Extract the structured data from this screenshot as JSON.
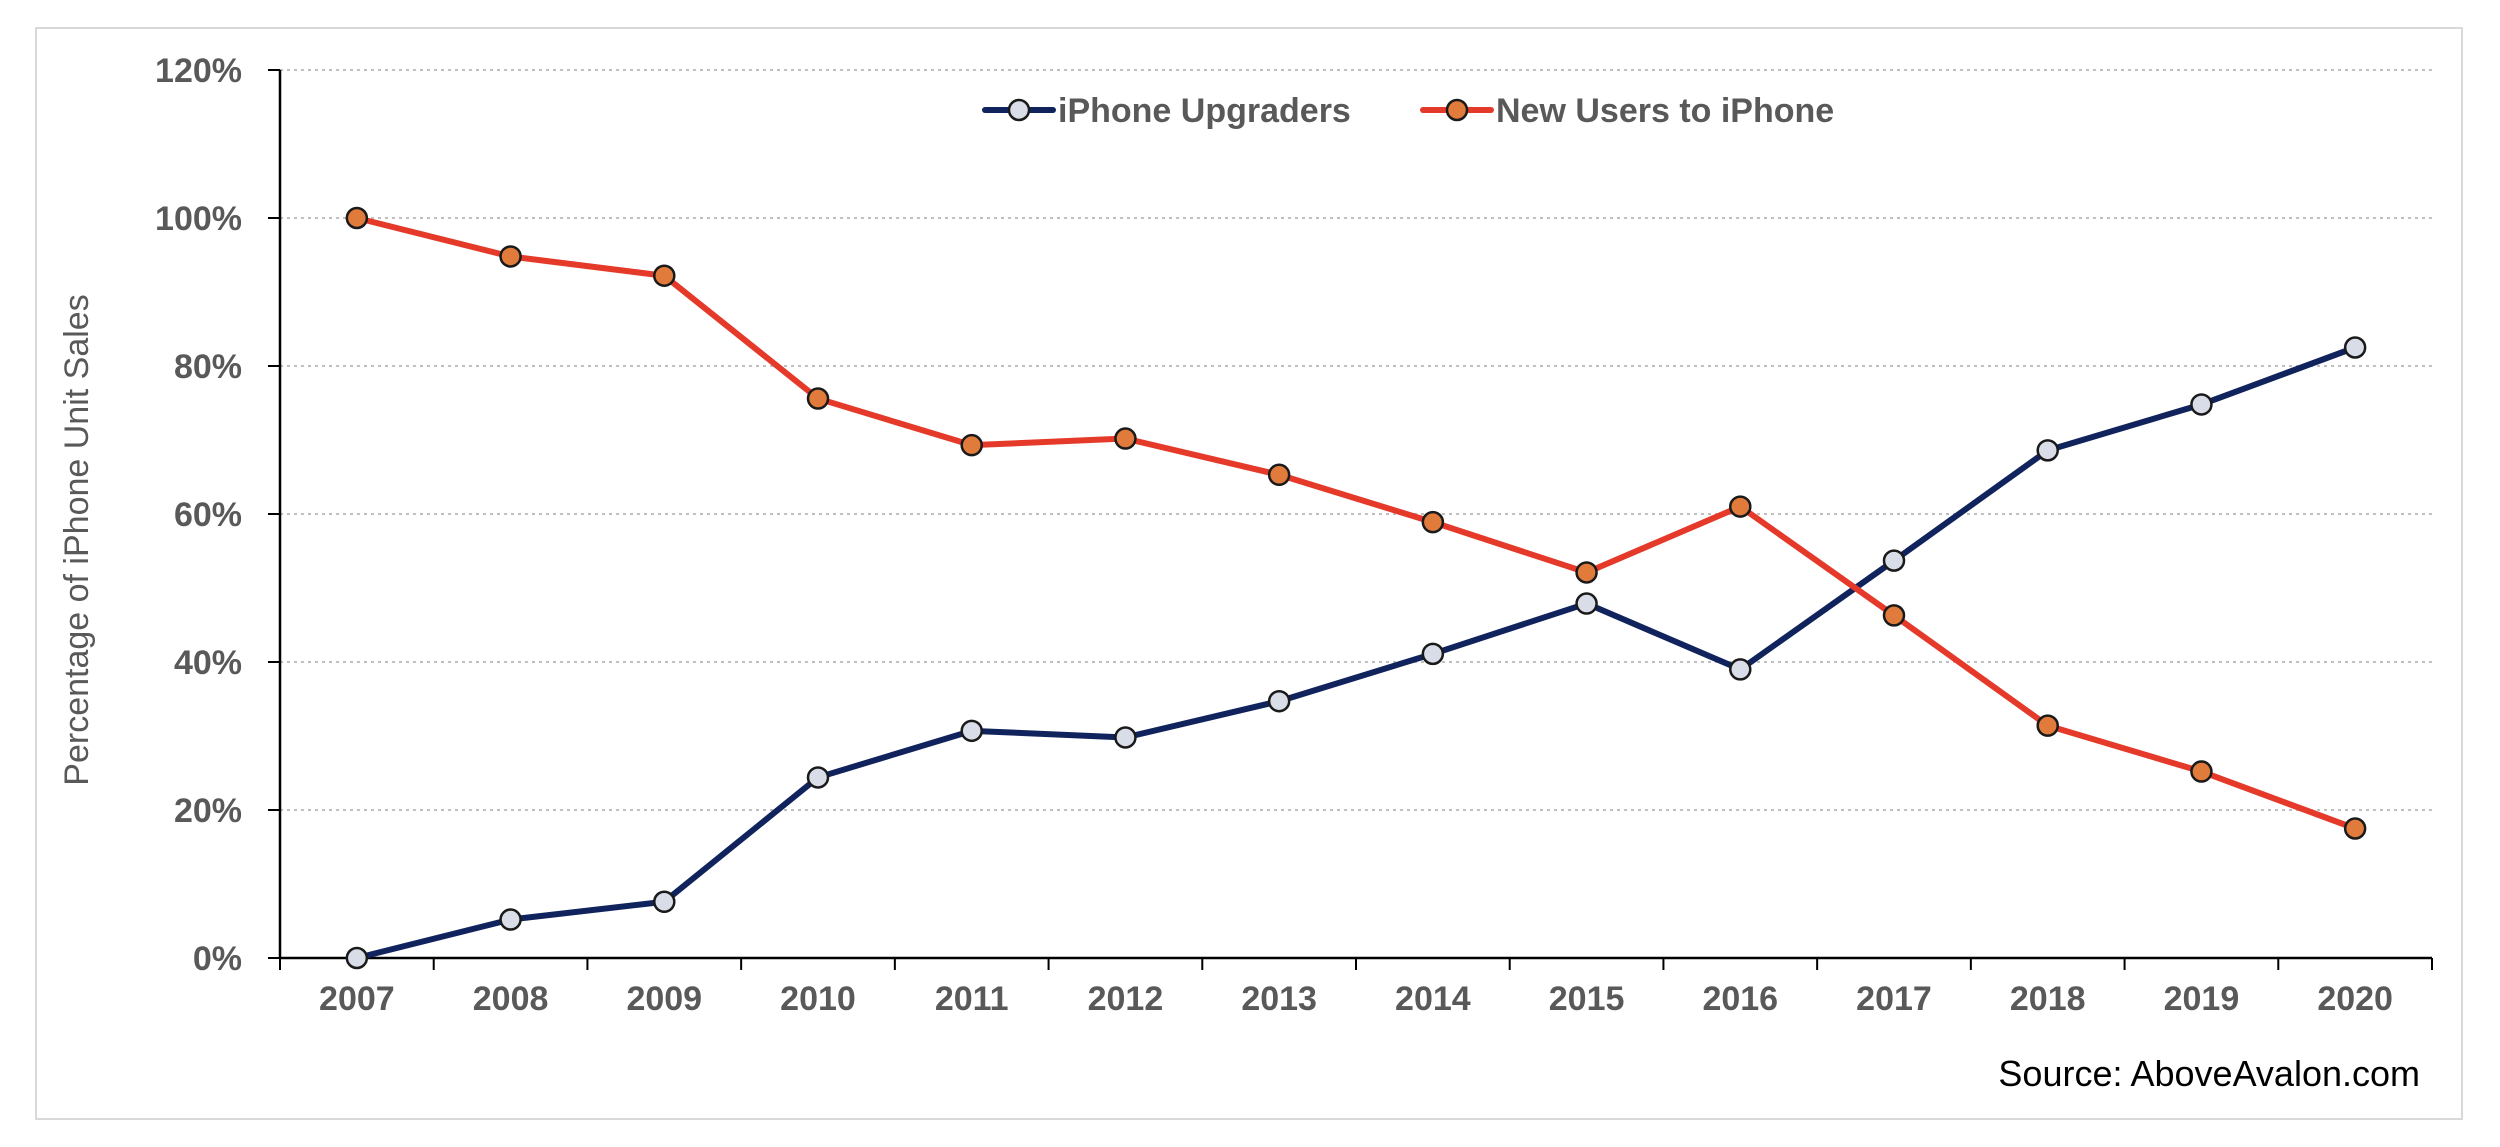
{
  "chart_data": {
    "type": "line",
    "x": [
      "2007",
      "2008",
      "2009",
      "2010",
      "2011",
      "2012",
      "2013",
      "2014",
      "2015",
      "2016",
      "2017",
      "2018",
      "2019",
      "2020"
    ],
    "series": [
      {
        "name": "iPhone Upgraders",
        "values": [
          0,
          5.2,
          7.6,
          24.4,
          30.7,
          29.8,
          34.7,
          41.1,
          47.9,
          39,
          53.7,
          68.6,
          74.8,
          82.5
        ],
        "color": "#10235c",
        "marker_fill": "#d9dde8"
      },
      {
        "name": "New Users to iPhone",
        "values": [
          100,
          94.8,
          92.2,
          75.6,
          69.3,
          70.2,
          65.3,
          58.9,
          52.1,
          61,
          46.3,
          31.4,
          25.2,
          17.5
        ],
        "color": "#e53a2a",
        "marker_fill": "#e07b3b"
      }
    ],
    "ylabel": "Percentage of iPhone Unit Sales",
    "xlabel": "",
    "ylim": [
      0,
      120
    ],
    "y_ticks": [
      "0%",
      "20%",
      "40%",
      "60%",
      "80%",
      "100%",
      "120%"
    ],
    "grid": true,
    "legend_position": "top",
    "source": "Source: AboveAvalon.com"
  }
}
